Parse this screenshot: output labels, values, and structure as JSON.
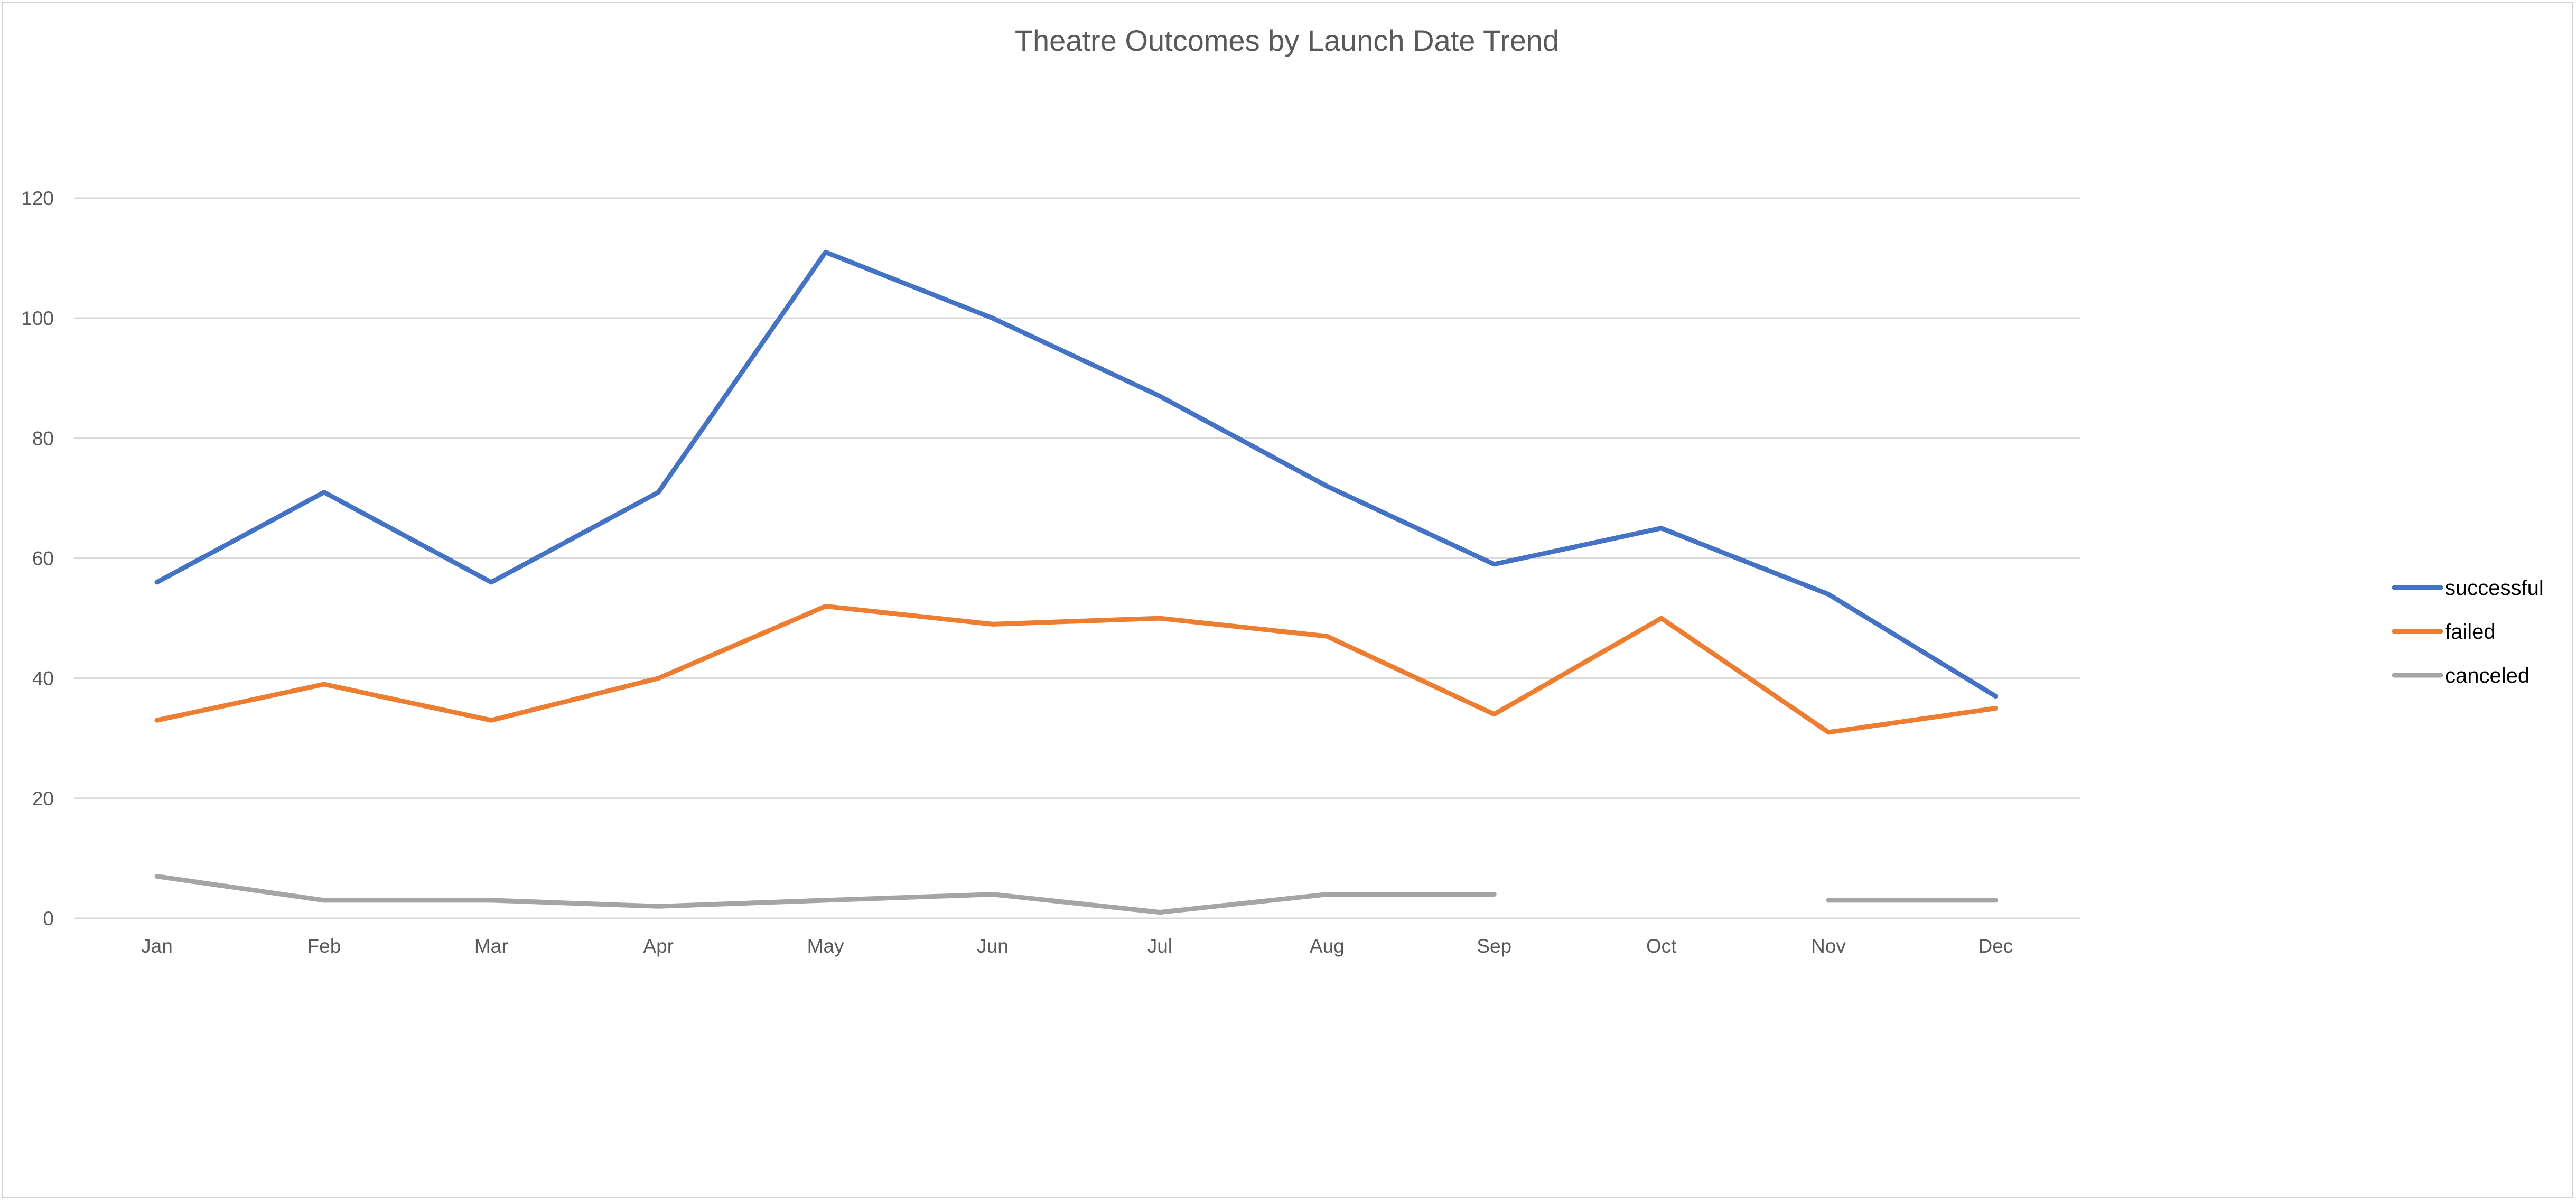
{
  "chart_data": {
    "type": "line",
    "title": "Theatre Outcomes by Launch Date Trend",
    "categories": [
      "Jan",
      "Feb",
      "Mar",
      "Apr",
      "May",
      "Jun",
      "Jul",
      "Aug",
      "Sep",
      "Oct",
      "Nov",
      "Dec"
    ],
    "series": [
      {
        "name": "successful",
        "color": "#4472C4",
        "values": [
          56,
          71,
          56,
          71,
          111,
          100,
          87,
          72,
          59,
          65,
          54,
          37
        ]
      },
      {
        "name": "failed",
        "color": "#ED7D31",
        "values": [
          33,
          39,
          33,
          40,
          52,
          49,
          50,
          47,
          34,
          50,
          31,
          35
        ]
      },
      {
        "name": "canceled",
        "color": "#A5A5A5",
        "values": [
          7,
          3,
          3,
          2,
          3,
          4,
          1,
          4,
          4,
          null,
          3,
          3
        ]
      }
    ],
    "ylim": [
      0,
      120
    ],
    "yticks": [
      0,
      20,
      40,
      60,
      80,
      100,
      120
    ],
    "xlabel": "",
    "ylabel": "",
    "grid": true,
    "legend_position": "right"
  }
}
